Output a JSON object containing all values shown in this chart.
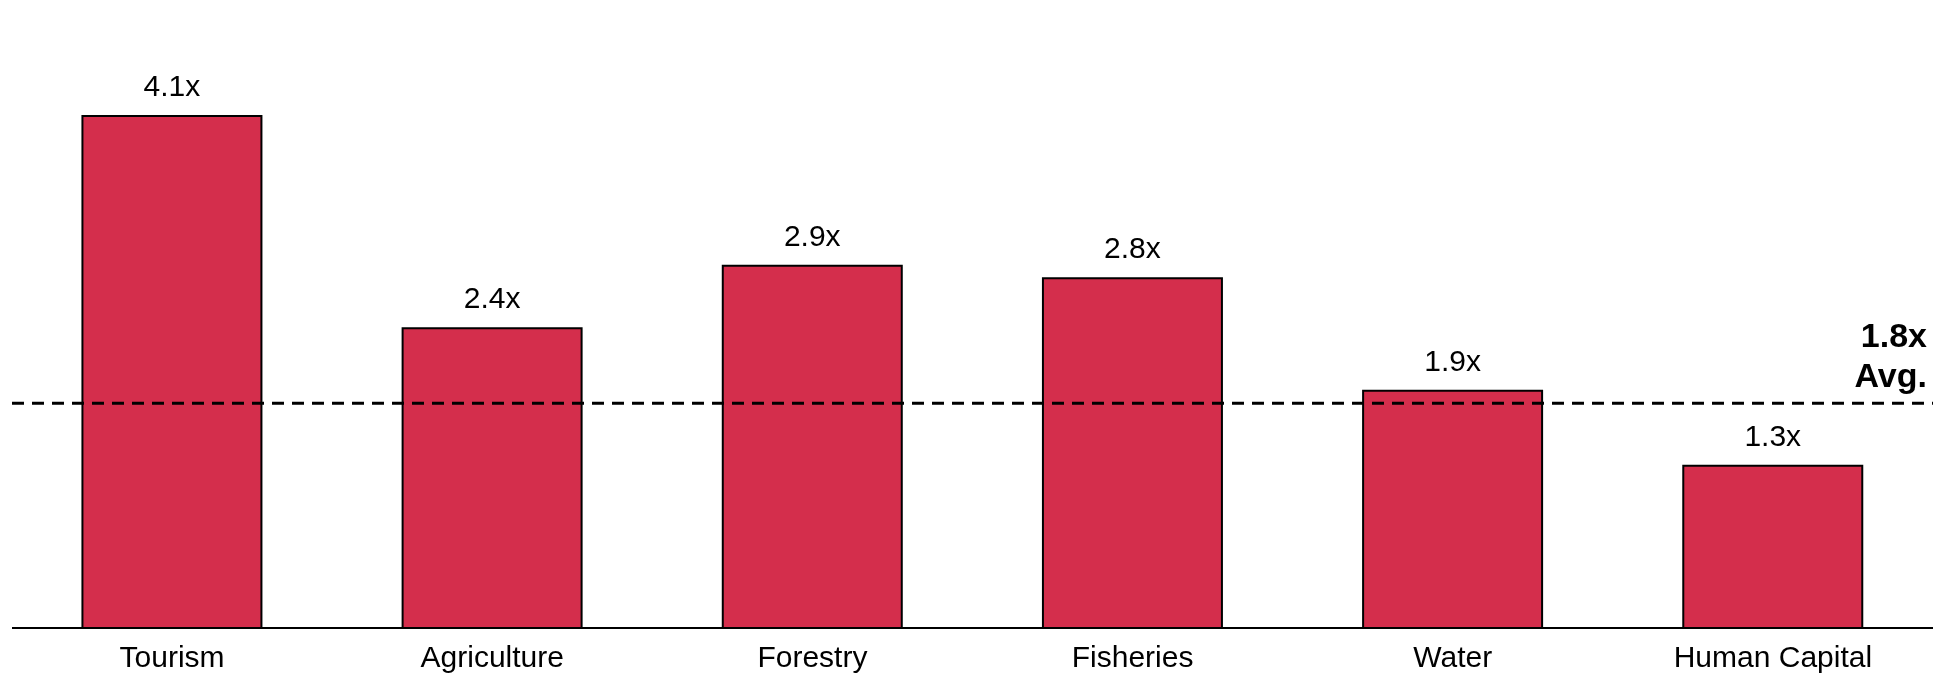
{
  "chart_data": {
    "type": "bar",
    "categories": [
      "Tourism",
      "Agriculture",
      "Forestry",
      "Fisheries",
      "Water",
      "Human Capital"
    ],
    "values": [
      4.1,
      2.4,
      2.9,
      2.8,
      1.9,
      1.3
    ],
    "value_labels": [
      "4.1x",
      "2.4x",
      "2.9x",
      "2.8x",
      "1.9x",
      "1.3x"
    ],
    "color": "#d42e4c",
    "ref_lines": [
      {
        "axis": "y",
        "value": 1.8,
        "label": "1.8x Avg.",
        "color": "#000000",
        "line_style": "dashed"
      }
    ],
    "grid": false,
    "legend": false
  }
}
